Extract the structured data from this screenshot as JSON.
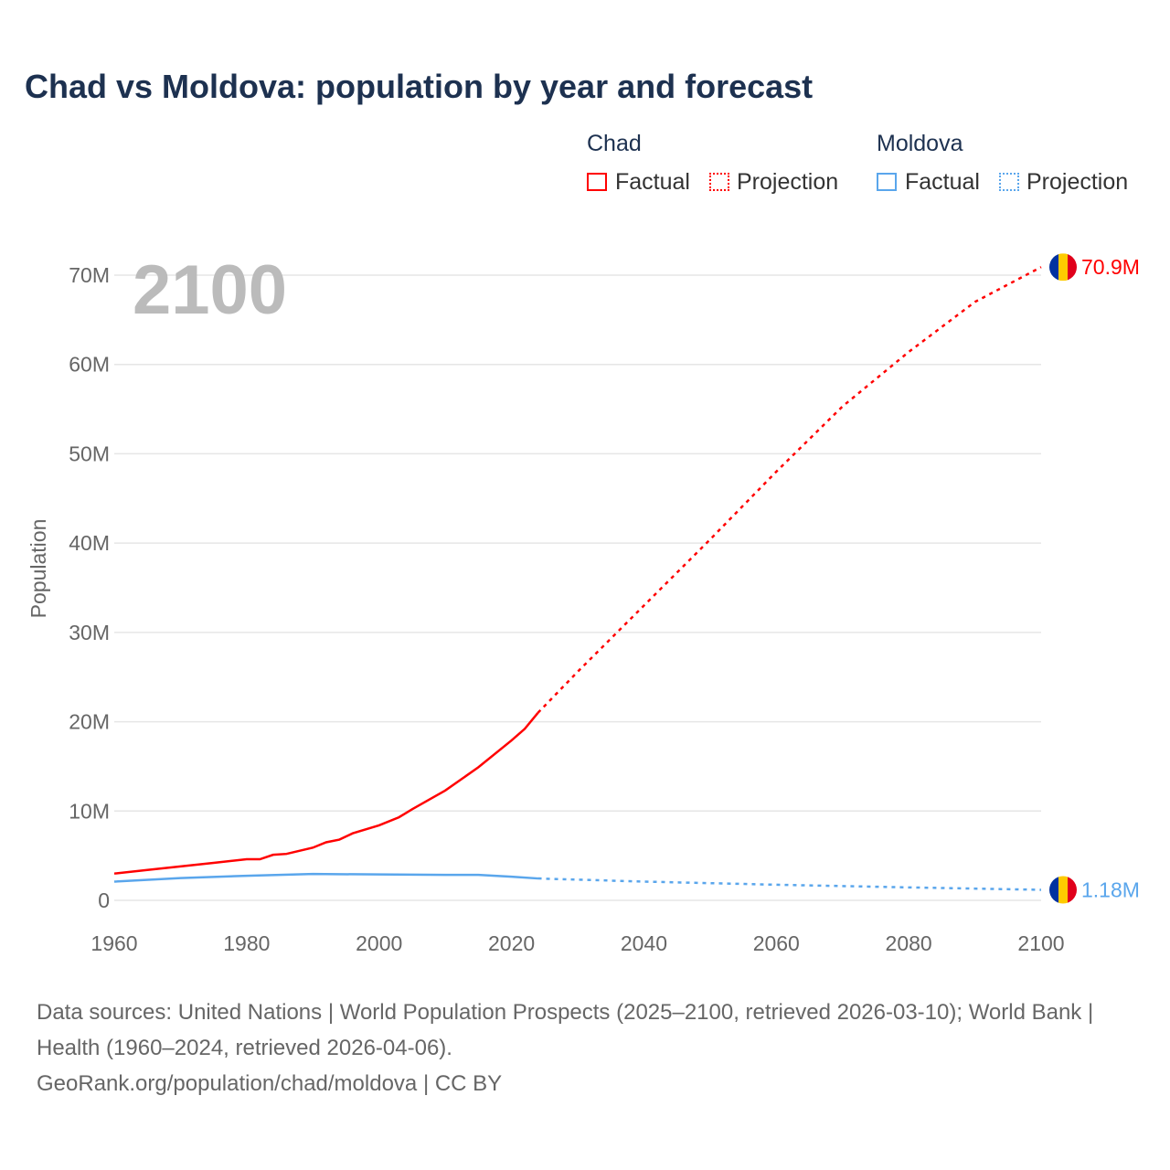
{
  "chart_data": {
    "type": "line",
    "title": "Chad vs Moldova: population by year and forecast",
    "ylabel": "Population",
    "xlabel": "",
    "xlim": [
      1960,
      2100
    ],
    "ylim": [
      0,
      70000000
    ],
    "x_ticks": [
      "1960",
      "1980",
      "2000",
      "2020",
      "2040",
      "2060",
      "2080",
      "2100"
    ],
    "y_ticks": [
      {
        "v": 0,
        "label": "0"
      },
      {
        "v": 10000000,
        "label": "10M"
      },
      {
        "v": 20000000,
        "label": "20M"
      },
      {
        "v": 30000000,
        "label": "30M"
      },
      {
        "v": 40000000,
        "label": "40M"
      },
      {
        "v": 50000000,
        "label": "50M"
      },
      {
        "v": 60000000,
        "label": "60M"
      },
      {
        "v": 70000000,
        "label": "70M"
      }
    ],
    "year_label": "2100",
    "legend": {
      "groups": [
        {
          "name": "Chad",
          "factual": "Factual",
          "projection": "Projection"
        },
        {
          "name": "Moldova",
          "factual": "Factual",
          "projection": "Projection"
        }
      ]
    },
    "series": [
      {
        "name": "Chad",
        "color": "#ff0000",
        "end_label": "70.9M",
        "factual": [
          [
            1960,
            3.0
          ],
          [
            1965,
            3.4
          ],
          [
            1970,
            3.8
          ],
          [
            1975,
            4.2
          ],
          [
            1980,
            4.6
          ],
          [
            1982,
            4.6
          ],
          [
            1984,
            5.1
          ],
          [
            1986,
            5.2
          ],
          [
            1990,
            5.9
          ],
          [
            1992,
            6.5
          ],
          [
            1994,
            6.8
          ],
          [
            1996,
            7.5
          ],
          [
            2000,
            8.4
          ],
          [
            2003,
            9.3
          ],
          [
            2005,
            10.2
          ],
          [
            2010,
            12.3
          ],
          [
            2015,
            14.9
          ],
          [
            2020,
            17.9
          ],
          [
            2022,
            19.2
          ],
          [
            2024,
            21.0
          ]
        ],
        "projection": [
          [
            2024,
            21.0
          ],
          [
            2030,
            25.6
          ],
          [
            2040,
            33.0
          ],
          [
            2050,
            40.4
          ],
          [
            2060,
            48.0
          ],
          [
            2070,
            55.3
          ],
          [
            2080,
            61.4
          ],
          [
            2090,
            67.0
          ],
          [
            2100,
            70.9
          ]
        ]
      },
      {
        "name": "Moldova",
        "color": "#5aa6ec",
        "end_label": "1.18M",
        "factual": [
          [
            1960,
            2.1
          ],
          [
            1970,
            2.5
          ],
          [
            1980,
            2.75
          ],
          [
            1990,
            2.95
          ],
          [
            2000,
            2.9
          ],
          [
            2010,
            2.85
          ],
          [
            2015,
            2.85
          ],
          [
            2020,
            2.65
          ],
          [
            2024,
            2.45
          ]
        ],
        "projection": [
          [
            2024,
            2.45
          ],
          [
            2040,
            2.1
          ],
          [
            2060,
            1.75
          ],
          [
            2080,
            1.45
          ],
          [
            2100,
            1.18
          ]
        ]
      }
    ]
  },
  "footer": {
    "sources": "Data sources: United Nations | World Population Prospects (2025–2100, retrieved 2026-03-10); World Bank | Health (1960–2024, retrieved 2026-04-06).",
    "credit": "GeoRank.org/population/chad/moldova | CC BY"
  }
}
